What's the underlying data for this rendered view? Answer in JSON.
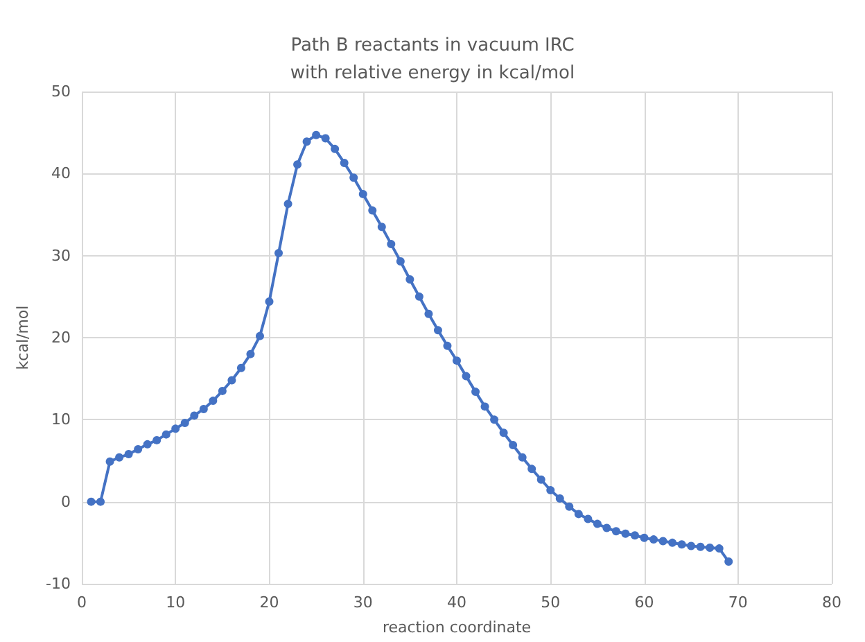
{
  "chart_data": {
    "type": "line",
    "title": "Path B reactants in vacuum IRC\nwith relative energy in kcal/mol",
    "xlabel": "reaction coordinate",
    "ylabel": "kcal/mol",
    "x": [
      1,
      2,
      3,
      4,
      5,
      6,
      7,
      8,
      9,
      10,
      11,
      12,
      13,
      14,
      15,
      16,
      17,
      18,
      19,
      20,
      21,
      22,
      23,
      24,
      25,
      26,
      27,
      28,
      29,
      30,
      31,
      32,
      33,
      34,
      35,
      36,
      37,
      38,
      39,
      40,
      41,
      42,
      43,
      44,
      45,
      46,
      47,
      48,
      49,
      50,
      51,
      52,
      53,
      54,
      55,
      56,
      57,
      58,
      59,
      60,
      61,
      62,
      63,
      64,
      65,
      66,
      67,
      68,
      69
    ],
    "series": [
      {
        "color": "#4472c4",
        "values": [
          0,
          0,
          4.9,
          5.4,
          5.8,
          6.4,
          7.0,
          7.5,
          8.2,
          8.9,
          9.6,
          10.5,
          11.3,
          12.3,
          13.5,
          14.8,
          16.3,
          18.0,
          20.2,
          24.4,
          30.3,
          36.3,
          41.1,
          43.9,
          44.7,
          44.3,
          43.0,
          41.3,
          39.5,
          37.5,
          35.5,
          33.5,
          31.4,
          29.3,
          27.1,
          25.0,
          22.9,
          20.9,
          19.0,
          17.2,
          15.3,
          13.4,
          11.6,
          10.0,
          8.4,
          6.9,
          5.4,
          4.0,
          2.7,
          1.4,
          0.4,
          -0.6,
          -1.5,
          -2.1,
          -2.7,
          -3.2,
          -3.6,
          -3.9,
          -4.1,
          -4.4,
          -4.6,
          -4.8,
          -5.0,
          -5.2,
          -5.4,
          -5.5,
          -5.6,
          -5.7,
          -7.3
        ]
      }
    ],
    "xlim": [
      0,
      80
    ],
    "xticks": [
      0,
      10,
      20,
      30,
      40,
      50,
      60,
      70,
      80
    ],
    "ylim": [
      -10,
      50
    ],
    "yticks": [
      -10,
      0,
      10,
      20,
      30,
      40,
      50
    ],
    "grid": true,
    "marker": "circle",
    "line_style": "solid"
  }
}
